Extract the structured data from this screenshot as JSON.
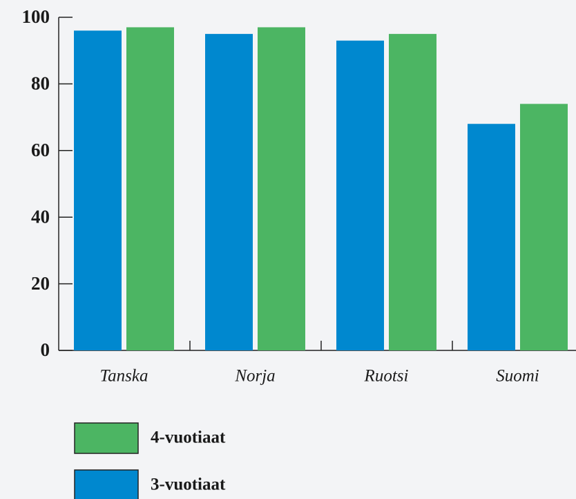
{
  "chart_data": {
    "type": "bar",
    "categories": [
      "Tanska",
      "Norja",
      "Ruotsi",
      "Suomi"
    ],
    "series": [
      {
        "name": "3-vuotiaat",
        "color": "#0088cf",
        "values": [
          96,
          95,
          93,
          68
        ]
      },
      {
        "name": "4-vuotiaat",
        "color": "#4cb563",
        "values": [
          97,
          97,
          95,
          74
        ]
      }
    ],
    "ylim": [
      0,
      100
    ],
    "yticks": [
      0,
      20,
      40,
      60,
      80,
      100
    ],
    "grid": false
  }
}
